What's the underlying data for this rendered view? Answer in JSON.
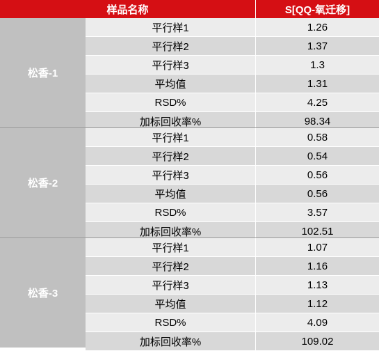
{
  "header": {
    "col1": "样品名称",
    "col2": "S[QQ-氧迁移]"
  },
  "groups": [
    {
      "name": "松香-1",
      "rows": [
        {
          "label": "平行样1",
          "value": "1.26"
        },
        {
          "label": "平行样2",
          "value": "1.37"
        },
        {
          "label": "平行样3",
          "value": "1.3"
        },
        {
          "label": "平均值",
          "value": "1.31"
        },
        {
          "label": "RSD%",
          "value": "4.25"
        },
        {
          "label": "加标回收率%",
          "value": "98.34"
        }
      ]
    },
    {
      "name": "松香-2",
      "rows": [
        {
          "label": "平行样1",
          "value": "0.58"
        },
        {
          "label": "平行样2",
          "value": "0.54"
        },
        {
          "label": "平行样3",
          "value": "0.56"
        },
        {
          "label": "平均值",
          "value": "0.56"
        },
        {
          "label": "RSD%",
          "value": "3.57"
        },
        {
          "label": "加标回收率%",
          "value": "102.51"
        }
      ]
    },
    {
      "name": "松香-3",
      "rows": [
        {
          "label": "平行样1",
          "value": "1.07"
        },
        {
          "label": "平行样2",
          "value": "1.16"
        },
        {
          "label": "平行样3",
          "value": "1.13"
        },
        {
          "label": "平均值",
          "value": "1.12"
        },
        {
          "label": "RSD%",
          "value": "4.09"
        },
        {
          "label": "加标回收率%",
          "value": "109.02"
        }
      ]
    }
  ],
  "colors": {
    "header_bg": "#d50f14",
    "label_bg": "#c0c0c0",
    "row_light": "#ececec",
    "row_dark": "#d8d8d8"
  }
}
